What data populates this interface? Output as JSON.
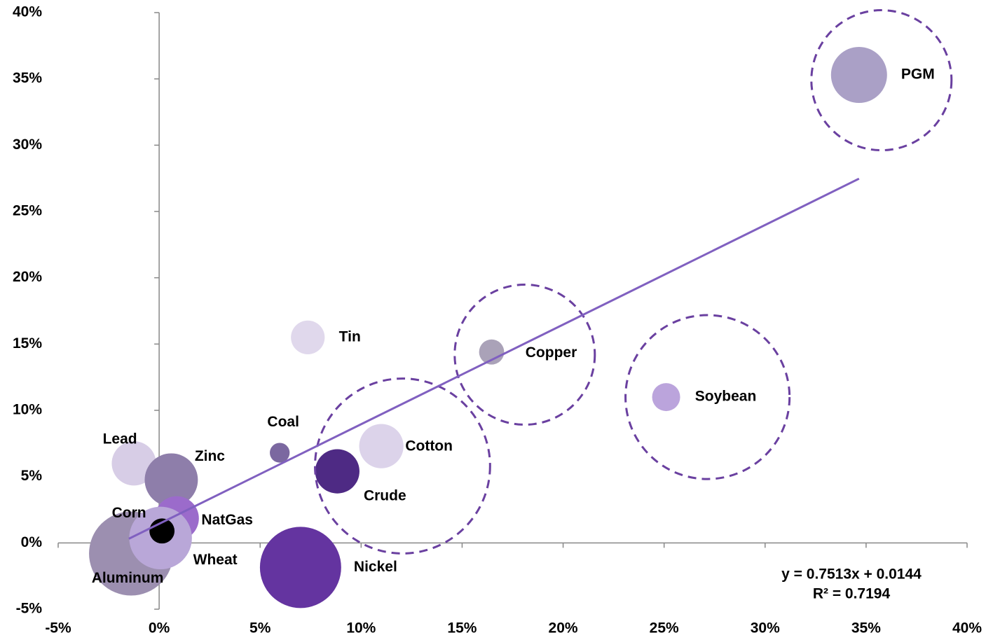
{
  "chart_data": {
    "type": "bubble",
    "points": {
      "labels": [
        "Lead",
        "Zinc",
        "NatGas",
        "Aluminum",
        "Wheat",
        "Corn",
        "Coal",
        "Tin",
        "Cotton",
        "Crude",
        "Nickel",
        "Copper",
        "Soybean",
        "PGM"
      ],
      "x": [
        -1.25,
        0.6,
        0.87,
        -1.39,
        0.07,
        0.14,
        5.97,
        7.36,
        11.0,
        8.82,
        7.0,
        16.46,
        25.1,
        34.65
      ],
      "y": [
        6.0,
        4.75,
        1.85,
        -0.8,
        0.37,
        0.9,
        6.8,
        15.5,
        7.3,
        5.4,
        -1.85,
        14.4,
        11.0,
        35.3
      ],
      "size": [
        10,
        14.4,
        10,
        36,
        20,
        3.2,
        2,
        5.8,
        10,
        10,
        33.6,
        3.2,
        4,
        16
      ],
      "colors": [
        "#d7cde6",
        "#8e7eaa",
        "#9b6bcb",
        "#9c8fb0",
        "#b9a7d8",
        "#000000",
        "#7b68a0",
        "#e0d8ec",
        "#dcd3ea",
        "#4e2a84",
        "#6434a0",
        "#aaa2b8",
        "#bba4dc",
        "#aaa0c6"
      ]
    },
    "highlight_circles": {
      "x": [
        35.76,
        18.1,
        27.15,
        12.05
      ],
      "y": [
        34.9,
        14.2,
        11.0,
        5.8
      ],
      "size": [
        100,
        100,
        137,
        156
      ],
      "color": "#6a40a0",
      "line_style": "dashed"
    },
    "trendline": {
      "slope": 0.7513,
      "intercept": 1.44,
      "x_range": [
        -1.5,
        34.65
      ],
      "color": "#8060c0"
    },
    "annotations": [
      "y = 0.7513x  + 0.0144",
      "R² = 0.7194"
    ],
    "xlim": [
      -5,
      40
    ],
    "ylim": [
      -5,
      40
    ],
    "xticks": [
      {
        "value": -5,
        "label": "-5%"
      },
      {
        "value": 0,
        "label": "0%"
      },
      {
        "value": 5,
        "label": "5%"
      },
      {
        "value": 10,
        "label": "10%"
      },
      {
        "value": 15,
        "label": "15%"
      },
      {
        "value": 20,
        "label": "20%"
      },
      {
        "value": 25,
        "label": "25%"
      },
      {
        "value": 30,
        "label": "30%"
      },
      {
        "value": 35,
        "label": "35%"
      },
      {
        "value": 40,
        "label": "40%"
      }
    ],
    "yticks": [
      {
        "value": -5,
        "label": "-5%"
      },
      {
        "value": 0,
        "label": "0%"
      },
      {
        "value": 5,
        "label": "5%"
      },
      {
        "value": 10,
        "label": "10%"
      },
      {
        "value": 15,
        "label": "15%"
      },
      {
        "value": 20,
        "label": "20%"
      },
      {
        "value": 25,
        "label": "25%"
      },
      {
        "value": 30,
        "label": "30%"
      },
      {
        "value": 35,
        "label": "35%"
      },
      {
        "value": 40,
        "label": "40%"
      }
    ],
    "grid": false
  }
}
